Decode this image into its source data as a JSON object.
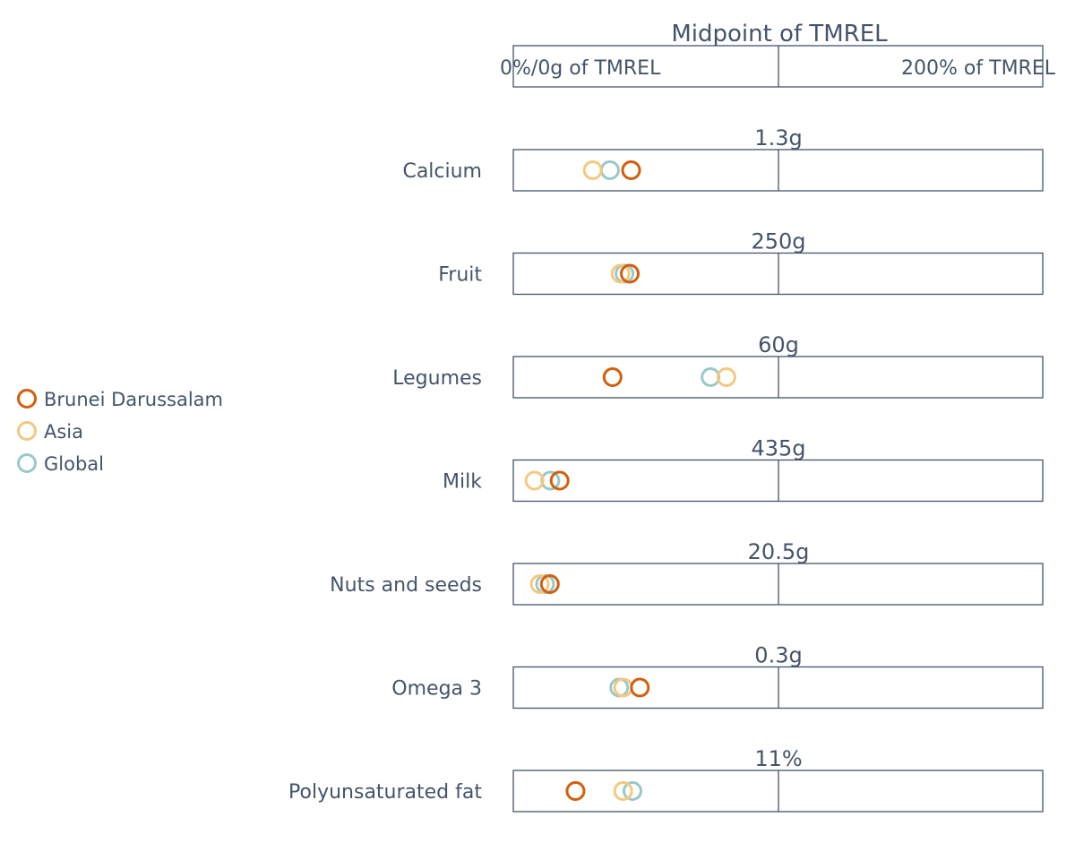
{
  "chart_data": {
    "type": "scatter",
    "header": {
      "title": "Midpoint of TMREL",
      "left_label": "0%/0g of TMREL",
      "right_label": "200% of TMREL"
    },
    "x_unit": "% of TMREL",
    "xlim": [
      0,
      200
    ],
    "legend": {
      "placement": "left",
      "entries": [
        {
          "name": "Brunei Darussalam",
          "color": "#d55e0c"
        },
        {
          "name": "Asia",
          "color": "#f5c87f"
        },
        {
          "name": "Global",
          "color": "#98c9c9"
        }
      ]
    },
    "categories": [
      "Calcium",
      "Fruit",
      "Legumes",
      "Milk",
      "Nuts and seeds",
      "Omega 3",
      "Polyunsaturated fat"
    ],
    "midpoint_labels": [
      "1.3g",
      "250g",
      "60g",
      "435g",
      "20.5g",
      "0.3g",
      "11%"
    ],
    "series": [
      {
        "name": "Brunei Darussalam",
        "values": [
          44.5,
          44.0,
          37.5,
          17.5,
          13.8,
          47.8,
          23.5
        ]
      },
      {
        "name": "Asia",
        "values": [
          30.0,
          40.5,
          80.5,
          8.0,
          10.0,
          41.5,
          41.5
        ]
      },
      {
        "name": "Global",
        "values": [
          36.5,
          42.0,
          74.5,
          14.0,
          12.0,
          40.0,
          45.0
        ]
      }
    ]
  }
}
